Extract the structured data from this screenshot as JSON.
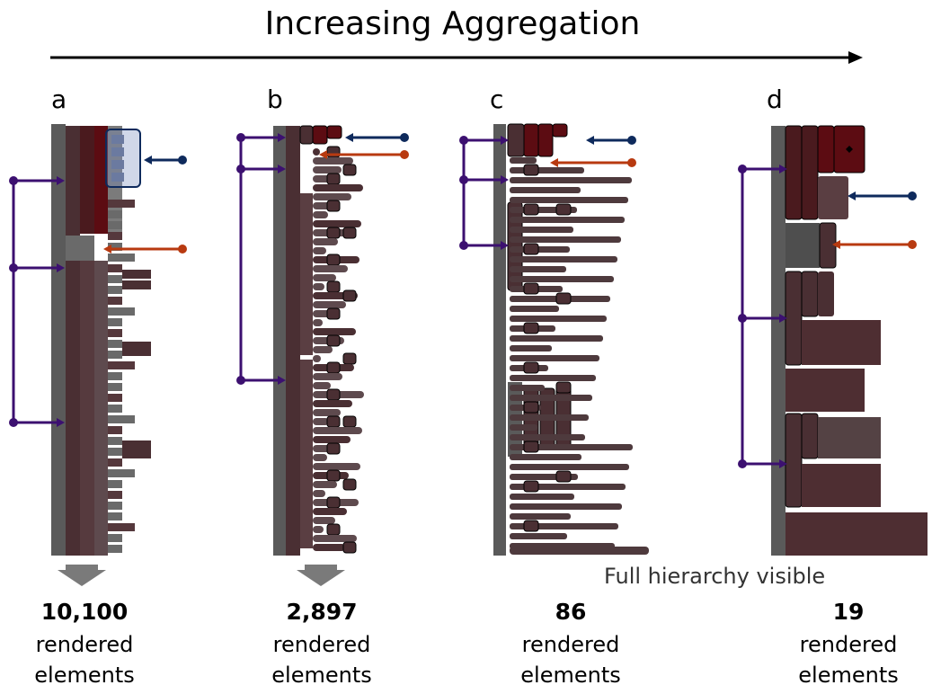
{
  "title": "Increasing Aggregation",
  "panels": [
    {
      "letter": "a",
      "count": "10,100",
      "description": "rendered\nelements"
    },
    {
      "letter": "b",
      "count": "2,897",
      "description": "rendered\nelements"
    },
    {
      "letter": "c",
      "count": "86",
      "description": "rendered\nelements"
    },
    {
      "letter": "d",
      "count": "19",
      "description": "rendered\nelements"
    }
  ],
  "caption": "Full hierarchy visible",
  "colors": {
    "gray": "#5a5a5a",
    "maroon": "#4a2428",
    "dark_red": "#5c0c12",
    "navy": "#0e2a5c",
    "orange": "#b83a10",
    "purple": "#3c1070"
  }
}
